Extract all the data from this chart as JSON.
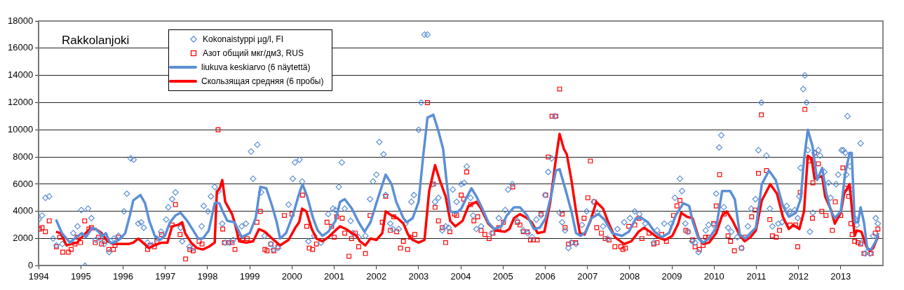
{
  "chart_data": {
    "type": "scatter",
    "title": "Rakkolanjoki",
    "xlim": [
      1994,
      2014
    ],
    "xticks": [
      1994,
      1995,
      1996,
      1997,
      1998,
      1999,
      2000,
      2001,
      2002,
      2003,
      2004,
      2005,
      2006,
      2007,
      2008,
      2009,
      2010,
      2011,
      2012,
      2013
    ],
    "ylim": [
      0,
      18000
    ],
    "yticks": [
      0,
      2000,
      4000,
      6000,
      8000,
      10000,
      12000,
      14000,
      16000,
      18000
    ],
    "grid": "y",
    "legend": "top left",
    "series": [
      {
        "name": "Kokonaistyppi  µg/l, FI",
        "type": "scatter",
        "marker": "diamond",
        "color": "#5b8fd6",
        "x": [
          1994.0,
          1994.08,
          1994.16,
          1994.25,
          1994.34,
          1994.42,
          1994.56,
          1994.82,
          1994.92,
          1995.01,
          1995.1,
          1995.17,
          1995.25,
          1995.35,
          1995.46,
          1995.55,
          1995.67,
          1995.78,
          1995.89,
          1996.02,
          1996.09,
          1996.18,
          1996.25,
          1996.36,
          1996.43,
          1996.49,
          1996.58,
          1996.69,
          1996.8,
          1996.9,
          1997.02,
          1997.07,
          1997.16,
          1997.24,
          1997.36,
          1997.4,
          1997.57,
          1997.66,
          1997.86,
          1997.91,
          1998.01,
          1998.08,
          1998.17,
          1998.26,
          1998.35,
          1998.42,
          1998.53,
          1998.61,
          1998.81,
          1998.91,
          1999.03,
          1999.08,
          1999.18,
          1999.27,
          1999.35,
          1999.5,
          1999.56,
          1999.67,
          1999.92,
          2000.02,
          2000.07,
          2000.18,
          2000.24,
          2000.39,
          2000.53,
          2000.69,
          2000.86,
          2000.97,
          2001.03,
          2001.11,
          2001.18,
          2001.25,
          2001.39,
          2001.44,
          2001.58,
          2001.74,
          2001.85,
          2001.92,
          2002.0,
          2002.07,
          2002.17,
          2002.22,
          2002.33,
          2002.39,
          2002.53,
          2002.69,
          2002.83,
          2002.89,
          2003.0,
          2003.06,
          2003.14,
          2003.21,
          2003.33,
          2003.39,
          2003.47,
          2003.56,
          2003.64,
          2003.71,
          2003.81,
          2003.9,
          2004.01,
          2004.08,
          2004.14,
          2004.23,
          2004.29,
          2004.37,
          2004.48,
          2004.73,
          2004.9,
          2005.05,
          2005.12,
          2005.22,
          2005.34,
          2005.48,
          2005.59,
          2005.69,
          2005.79,
          2005.9,
          2006.0,
          2006.07,
          2006.15,
          2006.23,
          2006.34,
          2006.4,
          2006.47,
          2006.55,
          2006.62,
          2006.73,
          2006.87,
          2006.98,
          2007.15,
          2007.23,
          2007.37,
          2007.48,
          2007.71,
          2007.87,
          2008.01,
          2008.12,
          2008.23,
          2008.37,
          2008.57,
          2008.65,
          2008.82,
          2008.98,
          2009.07,
          2009.19,
          2009.24,
          2009.32,
          2009.38,
          2009.48,
          2009.55,
          2009.63,
          2009.8,
          2009.87,
          2009.99,
          2010.05,
          2010.12,
          2010.17,
          2010.23,
          2010.33,
          2010.41,
          2010.55,
          2010.65,
          2010.8,
          2010.88,
          2010.98,
          2011.05,
          2011.12,
          2011.24,
          2011.32,
          2011.38,
          2011.52,
          2011.61,
          2011.72,
          2011.8,
          2011.91,
          2011.98,
          2012.02,
          2012.05,
          2012.11,
          2012.15,
          2012.19,
          2012.22,
          2012.27,
          2012.34,
          2012.38,
          2012.47,
          2012.51,
          2012.61,
          2012.71,
          2012.76,
          2012.89,
          2012.94,
          2013.02,
          2013.06,
          2013.11,
          2013.13,
          2013.16,
          2013.22,
          2013.24,
          2013.33,
          2013.38,
          2013.47,
          2013.49,
          2013.58,
          2013.69,
          2013.77,
          2013.83,
          2013.88
        ],
        "values": [
          3400,
          3700,
          5000,
          5100,
          2000,
          1500,
          1600,
          2400,
          2900,
          4100,
          0,
          4200,
          3500,
          1900,
          2000,
          1600,
          1000,
          2000,
          2200,
          4000,
          5300,
          7900,
          7800,
          3100,
          3200,
          2800,
          1700,
          1500,
          2000,
          2500,
          3400,
          4300,
          4900,
          5400,
          2800,
          1800,
          1400,
          1300,
          2900,
          4400,
          4000,
          5100,
          5800,
          5500,
          3100,
          1700,
          1700,
          1900,
          2900,
          3100,
          8400,
          6400,
          8900,
          5400,
          2200,
          1600,
          1200,
          1300,
          4500,
          6400,
          7600,
          7800,
          6200,
          1800,
          2200,
          1700,
          3800,
          4200,
          4100,
          5800,
          7600,
          4200,
          3300,
          2400,
          2100,
          2200,
          4900,
          6200,
          6700,
          9100,
          8200,
          5200,
          3100,
          2700,
          2700,
          3100,
          4700,
          5200,
          10000,
          12000,
          17000,
          17000,
          6000,
          4700,
          5000,
          2600,
          2900,
          2800,
          5600,
          4700,
          6000,
          6100,
          7300,
          5000,
          3700,
          2700,
          2900,
          2400,
          3500,
          4100,
          5600,
          6000,
          3300,
          2600,
          2400,
          2100,
          3400,
          3700,
          5200,
          6900,
          7900,
          11000,
          3900,
          3200,
          2600,
          1300,
          1700,
          1600,
          3000,
          4000,
          4700,
          3900,
          2900,
          2000,
          2700,
          3200,
          3500,
          4000,
          3800,
          3100,
          1700,
          2600,
          3100,
          3100,
          5000,
          6400,
          5500,
          3100,
          2500,
          1800,
          1700,
          1000,
          2600,
          3000,
          3000,
          5300,
          8700,
          9600,
          4300,
          2800,
          2500,
          2100,
          1300,
          2900,
          4200,
          4900,
          8500,
          12000,
          8100,
          4200,
          2900,
          3100,
          3200,
          4400,
          4000,
          4100,
          3500,
          5100,
          7200,
          13000,
          14000,
          12000,
          8500,
          2500,
          3900,
          8300,
          8500,
          8100,
          6900,
          6100,
          5000,
          6000,
          6700,
          8500,
          8500,
          8300,
          6700,
          11000,
          7300,
          5600,
          3500,
          3000,
          9000,
          1700,
          900,
          900,
          2200,
          3500,
          3100
        ]
      },
      {
        "name": "Азот общий мкг/дм3, RUS",
        "type": "scatter",
        "marker": "square",
        "color": "#ff0000",
        "x": [
          1994.02,
          1994.08,
          1994.16,
          1994.25,
          1994.42,
          1994.5,
          1994.57,
          1994.7,
          1994.77,
          1994.86,
          1994.91,
          1994.99,
          1995.09,
          1995.19,
          1995.25,
          1995.34,
          1995.42,
          1995.49,
          1995.56,
          1995.66,
          1995.77,
          1995.81,
          1995.89,
          1996.58,
          1996.64,
          1996.74,
          1996.8,
          1996.91,
          1997.16,
          1997.24,
          1997.35,
          1997.48,
          1997.58,
          1997.66,
          1997.8,
          1997.87,
          1998.25,
          1998.36,
          1998.4,
          1998.5,
          1998.58,
          1998.65,
          1998.75,
          1998.83,
          1998.94,
          1999.17,
          1999.25,
          1999.36,
          1999.41,
          1999.5,
          1999.57,
          1999.67,
          1999.82,
          2000.0,
          2000.25,
          2000.35,
          2000.41,
          2000.49,
          2000.58,
          2000.83,
          2000.94,
          2001.0,
          2001.06,
          2001.19,
          2001.25,
          2001.35,
          2001.41,
          2001.5,
          2001.58,
          2001.74,
          2001.85,
          2002.14,
          2002.22,
          2002.33,
          2002.41,
          2002.48,
          2002.57,
          2002.64,
          2002.74,
          2002.81,
          2002.91,
          2003.21,
          2003.35,
          2003.39,
          2003.47,
          2003.56,
          2003.64,
          2003.74,
          2003.85,
          2003.9,
          2004.01,
          2004.07,
          2004.14,
          2004.23,
          2004.31,
          2004.4,
          2004.48,
          2004.57,
          2004.67,
          2004.76,
          2004.9,
          2005.01,
          2005.23,
          2005.34,
          2005.4,
          2005.48,
          2005.57,
          2005.65,
          2005.72,
          2005.81,
          2005.9,
          2006.01,
          2006.07,
          2006.16,
          2006.25,
          2006.34,
          2006.4,
          2006.47,
          2006.55,
          2006.64,
          2006.72,
          2006.92,
          2007.01,
          2007.07,
          2007.16,
          2007.22,
          2007.33,
          2007.42,
          2007.51,
          2007.65,
          2007.79,
          2007.84,
          2007.9,
          2007.98,
          2008.12,
          2008.22,
          2008.29,
          2008.46,
          2008.57,
          2008.65,
          2008.76,
          2008.87,
          2009.04,
          2009.12,
          2009.19,
          2009.33,
          2009.38,
          2009.49,
          2009.55,
          2009.65,
          2009.74,
          2009.8,
          2009.87,
          2009.99,
          2010.05,
          2010.13,
          2010.24,
          2010.33,
          2010.39,
          2010.48,
          2010.65,
          2010.74,
          2010.89,
          2010.97,
          2011.05,
          2011.12,
          2011.24,
          2011.32,
          2011.38,
          2011.47,
          2011.55,
          2011.8,
          2011.93,
          2011.98,
          2012.04,
          2012.15,
          2012.24,
          2012.33,
          2012.34,
          2012.38,
          2012.47,
          2012.55,
          2012.65,
          2012.8,
          2012.87,
          2013.0,
          2013.05,
          2013.12,
          2013.19,
          2013.24,
          2013.27,
          2013.33,
          2013.41,
          2013.47,
          2013.55,
          2013.72,
          2013.82,
          2013.88
        ],
        "values": [
          2700,
          2800,
          2500,
          3300,
          1400,
          2100,
          1000,
          1000,
          1200,
          1600,
          2100,
          1700,
          3300,
          2700,
          2800,
          1700,
          2100,
          1600,
          1800,
          1200,
          1200,
          1500,
          2100,
          1200,
          1500,
          1400,
          1800,
          2300,
          3000,
          4500,
          2300,
          500,
          1200,
          1100,
          1800,
          1600,
          10000,
          2700,
          1700,
          1700,
          1700,
          1200,
          2100,
          2000,
          2000,
          3200,
          4000,
          1200,
          1100,
          1600,
          1100,
          1400,
          3700,
          3800,
          5200,
          2900,
          1300,
          1200,
          1600,
          3200,
          2900,
          2100,
          3600,
          3500,
          2400,
          700,
          2000,
          2400,
          1400,
          900,
          3700,
          3200,
          5100,
          2600,
          3600,
          2500,
          1300,
          1800,
          1200,
          2100,
          2300,
          12000,
          6000,
          4300,
          3300,
          2800,
          1700,
          2500,
          3800,
          3700,
          5200,
          4900,
          6900,
          4500,
          3300,
          3600,
          2600,
          2300,
          2000,
          2400,
          2800,
          3200,
          5800,
          3200,
          3000,
          2500,
          2500,
          1900,
          1900,
          1900,
          3800,
          5200,
          8000,
          11000,
          11000,
          13000,
          3800,
          2800,
          1600,
          1700,
          1700,
          3500,
          5000,
          7700,
          4700,
          2800,
          2400,
          2000,
          1900,
          1400,
          1400,
          1200,
          1300,
          2900,
          3000,
          3500,
          2000,
          2400,
          1600,
          1700,
          2300,
          1800,
          3700,
          4400,
          4800,
          2600,
          2500,
          1900,
          1400,
          1200,
          1500,
          2100,
          2100,
          3100,
          4400,
          6700,
          3800,
          2200,
          1800,
          1100,
          1300,
          2100,
          3600,
          4100,
          6800,
          11100,
          7000,
          3400,
          2200,
          2100,
          2600,
          3000,
          3000,
          1400,
          5400,
          11500,
          7700,
          3500,
          6100,
          8300,
          7500,
          4000,
          3700,
          2600,
          4700,
          3700,
          7200,
          5700,
          5100,
          3100,
          2300,
          1800,
          1700,
          1600,
          900,
          900,
          2400,
          2700
        ]
      },
      {
        "name": "liukuva keskiarvo (6 näytettä)",
        "type": "line",
        "marker": "none",
        "color": "#5b8fd6",
        "x": [
          1994.41,
          1994.55,
          1994.74,
          1994.85,
          1995.02,
          1995.12,
          1995.27,
          1995.35,
          1995.52,
          1995.59,
          1995.69,
          1995.8,
          1995.94,
          1996.05,
          1996.16,
          1996.24,
          1996.41,
          1996.52,
          1996.62,
          1996.75,
          1996.87,
          1996.99,
          1997.11,
          1997.24,
          1997.36,
          1997.52,
          1997.66,
          1997.78,
          1997.89,
          1998.03,
          1998.17,
          1998.28,
          1998.36,
          1998.47,
          1998.64,
          1998.81,
          1999.0,
          1999.14,
          1999.25,
          1999.39,
          1999.53,
          1999.64,
          1999.72,
          1999.86,
          2000.03,
          2000.17,
          2000.25,
          2000.36,
          2000.5,
          2000.61,
          2000.72,
          2000.86,
          2001.03,
          2001.14,
          2001.25,
          2001.42,
          2001.58,
          2001.72,
          2001.86,
          2002.03,
          2002.22,
          2002.36,
          2002.47,
          2002.64,
          2002.72,
          2002.86,
          2003.0,
          2003.11,
          2003.21,
          2003.35,
          2003.47,
          2003.58,
          2003.67,
          2003.75,
          2003.9,
          2004.01,
          2004.15,
          2004.25,
          2004.37,
          2004.51,
          2004.65,
          2004.79,
          2004.96,
          2005.09,
          2005.26,
          2005.4,
          2005.57,
          2005.73,
          2005.87,
          2006.01,
          2006.15,
          2006.25,
          2006.34,
          2006.48,
          2006.62,
          2006.73,
          2006.84,
          2006.96,
          2007.09,
          2007.26,
          2007.4,
          2007.59,
          2007.82,
          2007.98,
          2008.15,
          2008.29,
          2008.43,
          2008.59,
          2008.76,
          2008.93,
          2009.09,
          2009.27,
          2009.41,
          2009.49,
          2009.63,
          2009.74,
          2009.88,
          2010.05,
          2010.19,
          2010.38,
          2010.49,
          2010.61,
          2010.74,
          2010.86,
          2010.99,
          2011.13,
          2011.3,
          2011.46,
          2011.63,
          2011.77,
          2011.94,
          2012.05,
          2012.13,
          2012.22,
          2012.33,
          2012.44,
          2012.56,
          2012.66,
          2012.77,
          2012.86,
          2013.0,
          2013.1,
          2013.21,
          2013.26,
          2013.33,
          2013.41,
          2013.47,
          2013.55,
          2013.63,
          2013.72,
          2013.83,
          2013.89
        ],
        "values": [
          3400,
          2400,
          1700,
          2000,
          2400,
          2100,
          2800,
          2700,
          2200,
          2400,
          1700,
          1700,
          2000,
          2400,
          3700,
          4800,
          5200,
          4600,
          3300,
          2200,
          1900,
          2200,
          3200,
          3700,
          3900,
          3300,
          2600,
          2000,
          2000,
          2600,
          4600,
          4600,
          4000,
          3300,
          3200,
          2100,
          2400,
          3500,
          5800,
          5700,
          4400,
          3200,
          2000,
          2400,
          3800,
          5300,
          6000,
          5100,
          3500,
          2600,
          2200,
          2500,
          3300,
          4700,
          4900,
          4200,
          3200,
          2500,
          3200,
          4900,
          6700,
          6000,
          4700,
          3500,
          3200,
          3500,
          4700,
          8100,
          10900,
          11100,
          9900,
          8600,
          6000,
          4000,
          3900,
          4200,
          5100,
          5700,
          5100,
          4200,
          3200,
          2700,
          2900,
          3700,
          4300,
          4300,
          3700,
          2700,
          2800,
          3500,
          5300,
          7000,
          7100,
          5600,
          4000,
          2400,
          2200,
          2500,
          3500,
          3800,
          3400,
          2400,
          2200,
          2500,
          3500,
          3500,
          3200,
          2500,
          2100,
          2400,
          3700,
          4600,
          4400,
          3300,
          2000,
          1700,
          2000,
          2800,
          5500,
          5500,
          4900,
          2300,
          2000,
          2400,
          2800,
          6000,
          7000,
          6300,
          4400,
          3600,
          3900,
          4900,
          7800,
          10000,
          8800,
          6300,
          7200,
          5300,
          4000,
          3500,
          4000,
          6700,
          8300,
          8300,
          3200,
          3200,
          4300,
          3200,
          1200,
          1200,
          1800,
          2400
        ]
      },
      {
        "name": "Скользящая средняя (6 пробы)",
        "type": "line",
        "marker": "none",
        "color": "#ff0000",
        "x": [
          1994.41,
          1994.52,
          1994.66,
          1994.77,
          1994.91,
          1995.05,
          1995.21,
          1995.35,
          1995.49,
          1995.63,
          1995.77,
          1995.94,
          1996.13,
          1996.24,
          1996.36,
          1996.47,
          1996.61,
          1996.74,
          1996.91,
          1997.05,
          1997.16,
          1997.3,
          1997.4,
          1997.47,
          1997.61,
          1997.75,
          1997.89,
          1998.03,
          1998.17,
          1998.22,
          1998.29,
          1998.35,
          1998.42,
          1998.58,
          1998.64,
          1998.75,
          1998.92,
          1999.08,
          1999.22,
          1999.36,
          1999.53,
          1999.72,
          1999.92,
          2000.08,
          2000.17,
          2000.24,
          2000.34,
          2000.47,
          2000.58,
          2000.72,
          2000.86,
          2001.03,
          2001.14,
          2001.28,
          2001.42,
          2001.53,
          2001.61,
          2001.74,
          2001.86,
          2002.0,
          2002.14,
          2002.22,
          2002.36,
          2002.5,
          2002.64,
          2002.75,
          2002.86,
          2003.0,
          2003.14,
          2003.25,
          2003.39,
          2003.5,
          2003.64,
          2003.75,
          2003.87,
          2004.04,
          2004.18,
          2004.37,
          2004.48,
          2004.65,
          2004.82,
          2005.04,
          2005.15,
          2005.26,
          2005.4,
          2005.57,
          2005.68,
          2005.82,
          2005.98,
          2006.12,
          2006.25,
          2006.34,
          2006.44,
          2006.51,
          2006.62,
          2006.73,
          2006.82,
          2006.93,
          2007.07,
          2007.21,
          2007.37,
          2007.48,
          2007.65,
          2007.87,
          2008.04,
          2008.21,
          2008.34,
          2008.48,
          2008.65,
          2008.84,
          2009.01,
          2009.15,
          2009.22,
          2009.36,
          2009.49,
          2009.63,
          2009.74,
          2009.88,
          2010.05,
          2010.19,
          2010.3,
          2010.44,
          2010.58,
          2010.72,
          2010.86,
          2010.99,
          2011.13,
          2011.33,
          2011.49,
          2011.63,
          2011.77,
          2011.88,
          2012.02,
          2012.13,
          2012.22,
          2012.31,
          2012.38,
          2012.56,
          2012.63,
          2012.77,
          2012.86,
          2013.0,
          2013.08,
          2013.21,
          2013.27,
          2013.33,
          2013.38,
          2013.49,
          2013.61,
          2013.69,
          2013.77,
          2013.89
        ],
        "values": [
          2500,
          2400,
          1500,
          1600,
          1700,
          2200,
          2700,
          2700,
          2400,
          1800,
          1600,
          1600,
          1600,
          1700,
          2000,
          1700,
          1300,
          1500,
          1700,
          1700,
          2900,
          3000,
          3200,
          2400,
          1700,
          1300,
          1200,
          1400,
          1700,
          5400,
          5700,
          6300,
          4700,
          3800,
          3200,
          1800,
          1700,
          1800,
          2700,
          2500,
          2000,
          1500,
          1900,
          2800,
          3200,
          4200,
          4000,
          2700,
          2000,
          1800,
          2100,
          2600,
          2900,
          2700,
          2400,
          2200,
          1800,
          1500,
          2000,
          1900,
          2400,
          4000,
          3700,
          3500,
          3100,
          2300,
          1900,
          1700,
          1900,
          5500,
          7400,
          6300,
          5100,
          3300,
          2900,
          3300,
          4400,
          4700,
          4200,
          3100,
          2600,
          2500,
          2700,
          3500,
          3800,
          3500,
          3200,
          2400,
          2500,
          4700,
          7800,
          9700,
          8600,
          8200,
          6300,
          4000,
          2400,
          2300,
          3300,
          4700,
          4200,
          3300,
          2100,
          1600,
          1800,
          2500,
          2800,
          2500,
          2100,
          1900,
          2200,
          3100,
          3900,
          3600,
          3500,
          2100,
          1600,
          1700,
          2400,
          3700,
          4000,
          3300,
          2400,
          1800,
          2100,
          2600,
          4800,
          6000,
          5300,
          3600,
          2700,
          3000,
          2700,
          4000,
          8100,
          7900,
          6400,
          6600,
          5100,
          4100,
          3100,
          3900,
          5300,
          6000,
          4000,
          2200,
          2600,
          2500,
          1400,
          1100,
          1300,
          2200
        ]
      }
    ]
  }
}
